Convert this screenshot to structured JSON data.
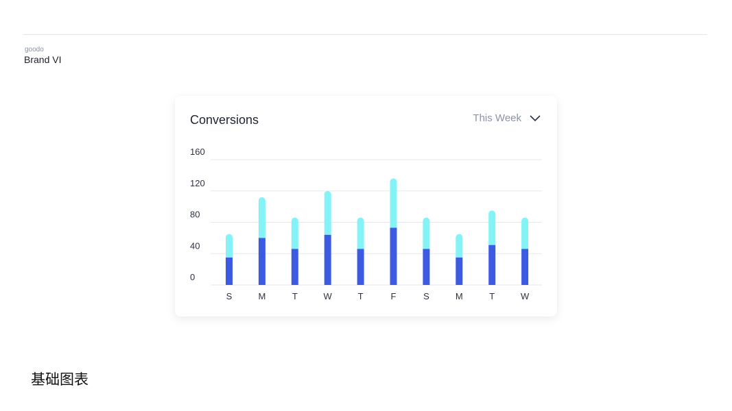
{
  "header": {
    "brand_small": "goodo",
    "brand_title": "Brand VI"
  },
  "card": {
    "title": "Conversions",
    "period": "This Week"
  },
  "colors": {
    "bottom_series": "#3d5ae3",
    "top_series": "#84f3f7",
    "grid": "#e5e7eb"
  },
  "chart_data": {
    "type": "bar",
    "stacked": true,
    "categories": [
      "S",
      "M",
      "T",
      "W",
      "T",
      "F",
      "S",
      "M",
      "T",
      "W"
    ],
    "series": [
      {
        "values": [
          35,
          60,
          46,
          64,
          46,
          73,
          46,
          35,
          51,
          46
        ]
      },
      {
        "values": [
          30,
          52,
          40,
          56,
          40,
          63,
          40,
          30,
          44,
          40
        ]
      }
    ],
    "yticks": [
      0,
      40,
      80,
      120,
      160
    ],
    "ylim": [
      0,
      160
    ],
    "grid": true
  },
  "footer": {
    "title": "基础图表"
  }
}
